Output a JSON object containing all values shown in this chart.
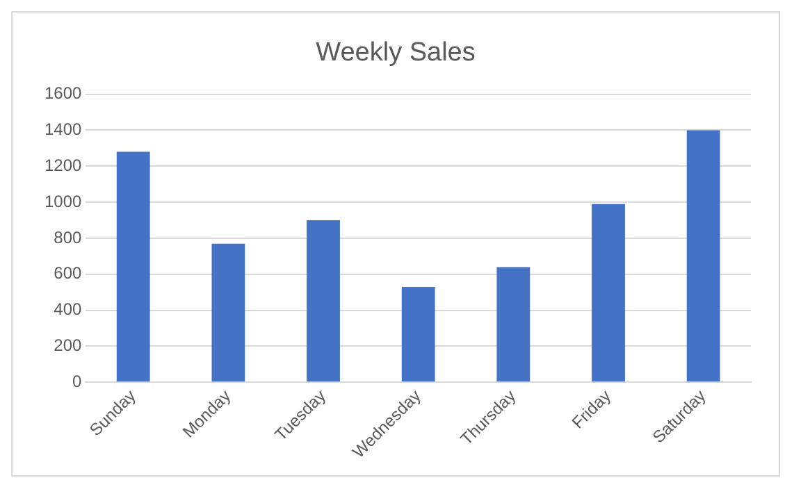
{
  "chart_data": {
    "type": "bar",
    "title": "Weekly Sales",
    "categories": [
      "Sunday",
      "Monday",
      "Tuesday",
      "Wednesday",
      "Thursday",
      "Friday",
      "Saturday"
    ],
    "values": [
      1280,
      770,
      900,
      530,
      640,
      990,
      1400
    ],
    "color": "#4472c4",
    "ylim": [
      0,
      1600
    ],
    "yticks": [
      0,
      200,
      400,
      600,
      800,
      1000,
      1200,
      1400,
      1600
    ],
    "grid": "y",
    "legend": false
  }
}
